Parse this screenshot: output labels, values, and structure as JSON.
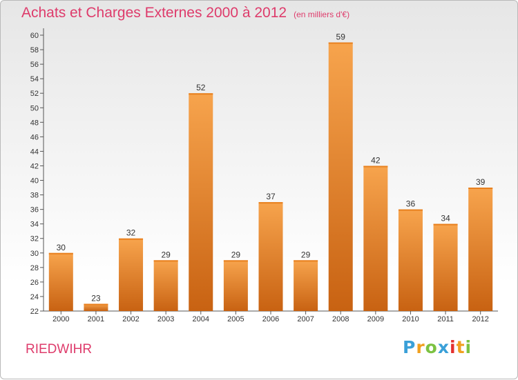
{
  "title": "Achats et Charges Externes 2000 à 2012",
  "unit": "(en milliers d'€)",
  "town": "RIEDWIHR",
  "logo": {
    "letters": [
      "P",
      "r",
      "o",
      "x",
      "i",
      "t",
      "i"
    ],
    "colors": [
      "#3aa0d8",
      "#f0a020",
      "#7cc242",
      "#3aa0d8",
      "#e4312f",
      "#f0a020",
      "#7cc242"
    ]
  },
  "colors": {
    "accent": "#de3b6b",
    "bar_light": "#f7a44d",
    "bar_dark": "#c86212"
  },
  "chart_data": {
    "type": "bar",
    "categories": [
      "2000",
      "2001",
      "2002",
      "2003",
      "2004",
      "2005",
      "2006",
      "2007",
      "2008",
      "2009",
      "2010",
      "2011",
      "2012"
    ],
    "values": [
      30,
      23,
      32,
      29,
      52,
      29,
      37,
      29,
      59,
      42,
      36,
      34,
      39
    ],
    "ylim": [
      22,
      60
    ],
    "yticks": [
      22,
      24,
      26,
      28,
      30,
      32,
      34,
      36,
      38,
      40,
      42,
      44,
      46,
      48,
      50,
      52,
      54,
      56,
      58,
      60
    ],
    "grid": false,
    "data_labels": true
  }
}
